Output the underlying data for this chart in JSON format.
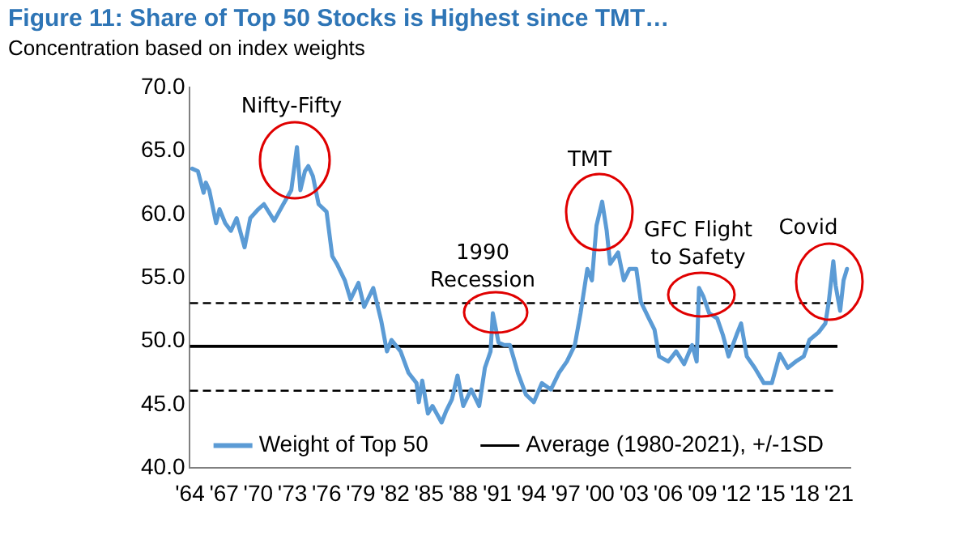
{
  "chart_data": {
    "type": "line",
    "title": "Figure 11: Share of Top 50 Stocks is Highest since TMT…",
    "subtitle": "Concentration based on index weights",
    "x": [
      1964.2,
      1964.7,
      1965.2,
      1965.4,
      1965.7,
      1966.3,
      1966.6,
      1967.1,
      1967.6,
      1968.1,
      1968.8,
      1969.3,
      1970.0,
      1970.5,
      1971.4,
      1972.2,
      1972.9,
      1973.4,
      1973.7,
      1974.1,
      1974.4,
      1974.8,
      1975.3,
      1976.0,
      1976.5,
      1976.9,
      1977.6,
      1978.1,
      1978.8,
      1979.3,
      1980.1,
      1980.8,
      1981.3,
      1981.7,
      1982.5,
      1983.2,
      1983.9,
      1984.1,
      1984.4,
      1984.9,
      1985.3,
      1986.1,
      1986.5,
      1987.0,
      1987.5,
      1988.0,
      1988.7,
      1989.4,
      1989.9,
      1990.4,
      1990.6,
      1991.1,
      1991.6,
      1992.1,
      1992.8,
      1993.5,
      1994.2,
      1994.9,
      1995.7,
      1996.4,
      1997.1,
      1997.8,
      1998.3,
      1998.9,
      1999.3,
      1999.7,
      2000.2,
      2000.6,
      2000.9,
      2001.6,
      2002.1,
      2002.6,
      2003.2,
      2003.6,
      2004.3,
      2004.8,
      2005.2,
      2006.0,
      2006.7,
      2007.4,
      2008.1,
      2008.5,
      2008.7,
      2009.1,
      2009.6,
      2010.3,
      2010.8,
      2011.3,
      2012.0,
      2012.4,
      2012.9,
      2013.6,
      2014.4,
      2015.1,
      2015.8,
      2016.5,
      2017.2,
      2017.9,
      2018.4,
      2019.2,
      2019.8,
      2020.1,
      2020.5,
      2020.7,
      2021.1,
      2021.4,
      2021.7
    ],
    "series": [
      {
        "name": "Weight of Top 50",
        "color": "#5b9bd5",
        "values": [
          63.6,
          63.4,
          61.7,
          62.5,
          61.9,
          59.3,
          60.4,
          59.3,
          58.7,
          59.7,
          57.4,
          59.7,
          60.4,
          60.8,
          59.5,
          60.8,
          61.9,
          65.3,
          61.9,
          63.4,
          63.8,
          63.0,
          60.8,
          60.2,
          56.7,
          56.1,
          54.8,
          53.3,
          54.6,
          52.7,
          54.2,
          51.6,
          49.2,
          50.1,
          49.2,
          47.5,
          46.7,
          45.2,
          46.9,
          44.3,
          44.9,
          43.6,
          44.5,
          45.4,
          47.3,
          44.9,
          46.2,
          44.9,
          47.9,
          49.2,
          52.2,
          49.9,
          49.7,
          49.7,
          47.5,
          45.8,
          45.2,
          46.7,
          46.2,
          47.5,
          48.4,
          49.7,
          52.2,
          55.7,
          54.8,
          59.1,
          61.0,
          58.7,
          56.1,
          57.0,
          54.8,
          55.7,
          55.7,
          53.1,
          51.8,
          50.9,
          48.8,
          48.4,
          49.2,
          48.2,
          49.7,
          48.4,
          54.2,
          53.5,
          52.2,
          51.8,
          50.5,
          48.8,
          50.5,
          51.4,
          48.8,
          47.9,
          46.7,
          46.7,
          49.0,
          47.9,
          48.4,
          48.8,
          50.1,
          50.7,
          51.4,
          53.1,
          56.3,
          54.4,
          52.4,
          54.8,
          55.7
        ]
      }
    ],
    "xlim": [
      1964,
      2022
    ],
    "xticks": [
      {
        "value": 1964,
        "label": "'64"
      },
      {
        "value": 1967,
        "label": "'67"
      },
      {
        "value": 1970,
        "label": "'70"
      },
      {
        "value": 1973,
        "label": "'73"
      },
      {
        "value": 1976,
        "label": "'76"
      },
      {
        "value": 1979,
        "label": "'79"
      },
      {
        "value": 1982,
        "label": "'82"
      },
      {
        "value": 1985,
        "label": "'85"
      },
      {
        "value": 1988,
        "label": "'88"
      },
      {
        "value": 1991,
        "label": "'91"
      },
      {
        "value": 1994,
        "label": "'94"
      },
      {
        "value": 1997,
        "label": "'97"
      },
      {
        "value": 2000,
        "label": "'00"
      },
      {
        "value": 2003,
        "label": "'03"
      },
      {
        "value": 2006,
        "label": "'06"
      },
      {
        "value": 2009,
        "label": "'09"
      },
      {
        "value": 2012,
        "label": "'12"
      },
      {
        "value": 2015,
        "label": "'15"
      },
      {
        "value": 2018,
        "label": "'18"
      },
      {
        "value": 2021,
        "label": "'21"
      }
    ],
    "ylim": [
      40,
      70
    ],
    "yticks": [
      {
        "value": 40,
        "label": "40.0"
      },
      {
        "value": 45,
        "label": "45.0"
      },
      {
        "value": 50,
        "label": "50.0"
      },
      {
        "value": 55,
        "label": "55.0"
      },
      {
        "value": 60,
        "label": "60.0"
      },
      {
        "value": 65,
        "label": "65.0"
      },
      {
        "value": 70,
        "label": "70.0"
      }
    ],
    "ref_lines": [
      {
        "axis": "y",
        "value": 53.0,
        "label": null,
        "color": "#000000",
        "line_style": "dashed"
      },
      {
        "axis": "y",
        "value": 49.6,
        "label": "Average (1980-2021), +/-1SD",
        "color": "#000000",
        "line_style": "solid"
      },
      {
        "axis": "y",
        "value": 46.1,
        "label": null,
        "color": "#000000",
        "line_style": "dashed"
      }
    ],
    "annotations": [
      "Nifty-Fifty",
      "1990\nRecession",
      "TMT",
      "GFC Flight\nto Safety",
      "Covid"
    ],
    "legend": "bottom",
    "grid": false,
    "marker": "none",
    "line_style": "solid"
  }
}
